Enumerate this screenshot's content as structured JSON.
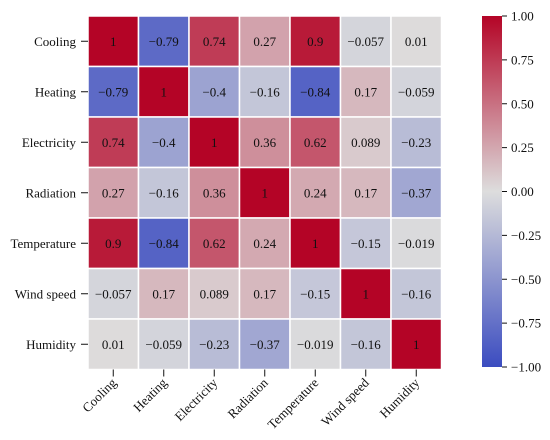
{
  "chart_data": {
    "type": "heatmap",
    "variables": [
      "Cooling",
      "Heating",
      "Electricity",
      "Radiation",
      "Temperature",
      "Wind speed",
      "Humidity"
    ],
    "matrix": [
      [
        1,
        -0.79,
        0.74,
        0.27,
        0.9,
        -0.057,
        0.01
      ],
      [
        -0.79,
        1,
        -0.4,
        -0.16,
        -0.84,
        0.17,
        -0.059
      ],
      [
        0.74,
        -0.4,
        1,
        0.36,
        0.62,
        0.089,
        -0.23
      ],
      [
        0.27,
        -0.16,
        0.36,
        1,
        0.24,
        0.17,
        -0.37
      ],
      [
        0.9,
        -0.84,
        0.62,
        0.24,
        1,
        -0.15,
        -0.019
      ],
      [
        -0.057,
        0.17,
        0.089,
        0.17,
        -0.15,
        1,
        -0.16
      ],
      [
        0.01,
        -0.059,
        -0.23,
        -0.37,
        -0.019,
        -0.16,
        1
      ]
    ],
    "cell_labels": [
      [
        "1",
        "−0.79",
        "0.74",
        "0.27",
        "0.9",
        "−0.057",
        "0.01"
      ],
      [
        "−0.79",
        "1",
        "−0.4",
        "−0.16",
        "−0.84",
        "0.17",
        "−0.059"
      ],
      [
        "0.74",
        "−0.4",
        "1",
        "0.36",
        "0.62",
        "0.089",
        "−0.23"
      ],
      [
        "0.27",
        "−0.16",
        "0.36",
        "1",
        "0.24",
        "0.17",
        "−0.37"
      ],
      [
        "0.9",
        "−0.84",
        "0.62",
        "0.24",
        "1",
        "−0.15",
        "−0.019"
      ],
      [
        "−0.057",
        "0.17",
        "0.089",
        "0.17",
        "−0.15",
        "1",
        "−0.16"
      ],
      [
        "0.01",
        "−0.059",
        "−0.23",
        "−0.37",
        "−0.019",
        "−0.16",
        "1"
      ]
    ],
    "colormap": "coolwarm",
    "colormap_stops": [
      "#3b4cc0",
      "#dddddd",
      "#b40426"
    ],
    "range": [
      -1,
      1
    ],
    "colorbar": {
      "ticks": [
        1,
        0.75,
        0.5,
        0.25,
        0,
        -0.25,
        -0.5,
        -0.75,
        -1
      ],
      "tick_labels": [
        "1.00",
        "0.75",
        "0.50",
        "0.25",
        "0.00",
        "−0.25",
        "−0.50",
        "−0.75",
        "−1.00"
      ]
    },
    "cell_border_color": "#ffffff",
    "title": "",
    "xlabel": "",
    "ylabel": ""
  }
}
